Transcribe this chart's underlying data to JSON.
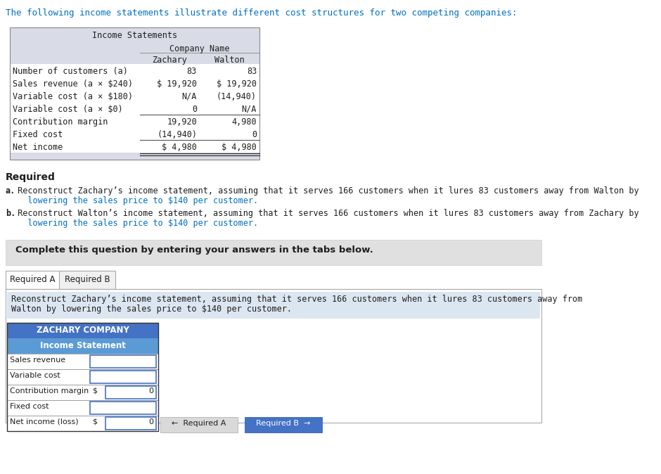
{
  "intro_text": "The following income statements illustrate different cost structures for two competing companies:",
  "table_title": "Income Statements",
  "col_header": "Company Name",
  "col1": "Zachary",
  "col2": "Walton",
  "rows": [
    {
      "label": "Number of customers (a)",
      "c1": "83",
      "c2": "83"
    },
    {
      "label": "Sales revenue (a × $240)",
      "c1": "$ 19,920",
      "c2": "$ 19,920"
    },
    {
      "label": "Variable cost (a × $180)",
      "c1": "N/A",
      "c2": "(14,940)"
    },
    {
      "label": "Variable cost (a × $0)",
      "c1": "0",
      "c2": "N/A"
    },
    {
      "label": "Contribution margin",
      "c1": "19,920",
      "c2": "4,980"
    },
    {
      "label": "Fixed cost",
      "c1": "(14,940)",
      "c2": "0"
    },
    {
      "label": "Net income",
      "c1": "$ 4,980",
      "c2": "$ 4,980"
    }
  ],
  "required_header": "Required",
  "req_a_text_bold": "a.",
  "req_a_text_main": " Reconstruct Zachary’s income statement, assuming that it serves 166 customers when it lures 83 customers away from Walton by",
  "req_a_text_line2": "   lowering the sales price to $140 per customer.",
  "req_b_text_bold": "b.",
  "req_b_text_main": " Reconstruct Walton’s income statement, assuming that it serves 166 customers when it lures 83 customers away from Zachary by",
  "req_b_text_line2": "   lowering the sales price to $140 per customer.",
  "complete_text": "Complete this question by entering your answers in the tabs below.",
  "tab_a": "Required A",
  "tab_b": "Required B",
  "tab_desc_line1": "Reconstruct Zachary’s income statement, assuming that it serves 166 customers when it lures 83 customers away from",
  "tab_desc_line2": "Walton by lowering the sales price to $140 per customer.",
  "zachary_title": "ZACHARY COMPANY",
  "zachary_subtitle": "Income Statement",
  "form_rows": [
    "Sales revenue",
    "Variable cost",
    "Contribution margin",
    "Fixed cost",
    "Net income (loss)"
  ],
  "form_dollar_rows": [
    "Contribution margin",
    "Net income (loss)"
  ],
  "form_values": {
    "Contribution margin": "0",
    "Net income (loss)": "0"
  },
  "btn_left": "←  Required A",
  "btn_right": "Required B  →",
  "bg_color": "#ffffff",
  "table_header_bg": "#d9dce6",
  "blue_text": "#0070c0",
  "dark_text": "#1f1f1f",
  "form_header_bg": "#4472c4",
  "form_subheader_bg": "#5b9bd5",
  "tab_active_bg": "#ffffff",
  "tab_inactive_bg": "#f0f0f0",
  "complete_bg": "#e0e0e0",
  "desc_bg": "#dce6f1",
  "btn_left_bg": "#d9d9d9",
  "btn_right_bg": "#4472c4",
  "btn_right_text": "#ffffff"
}
